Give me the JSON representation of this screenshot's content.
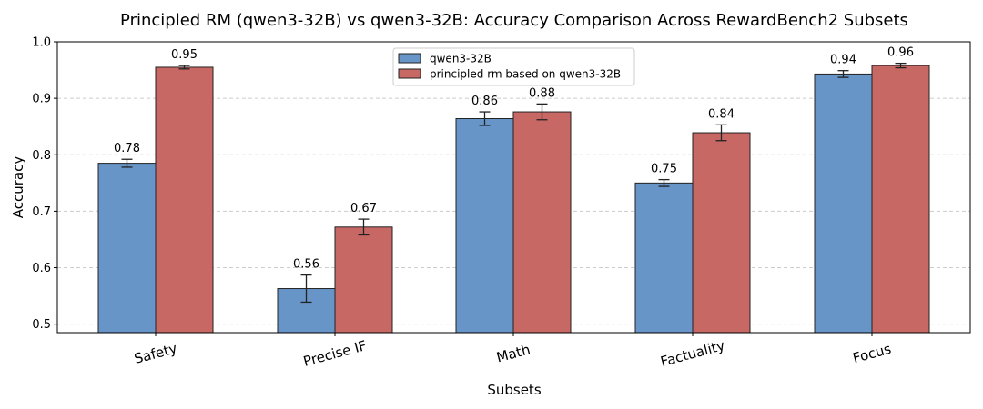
{
  "chart_data": {
    "type": "bar",
    "title": "Principled RM (qwen3-32B) vs qwen3-32B: Accuracy Comparison Across RewardBench2 Subsets",
    "xlabel": "Subsets",
    "ylabel": "Accuracy",
    "ylim": [
      0.485,
      1.0
    ],
    "yticks": [
      0.5,
      0.6,
      0.7,
      0.8,
      0.9,
      1.0
    ],
    "ytick_labels": [
      "0.5",
      "0.6",
      "0.7",
      "0.8",
      "0.9",
      "1.0"
    ],
    "grid": true,
    "legend_position": "top-center",
    "categories": [
      "Safety",
      "Precise IF",
      "Math",
      "Factuality",
      "Focus"
    ],
    "series": [
      {
        "name": "qwen3-32B",
        "color": "#6795c8",
        "values": [
          0.785,
          0.563,
          0.864,
          0.75,
          0.943
        ],
        "errors": [
          0.007,
          0.024,
          0.012,
          0.006,
          0.006
        ],
        "labels": [
          "0.78",
          "0.56",
          "0.86",
          "0.75",
          "0.94"
        ]
      },
      {
        "name": "principled rm based on qwen3-32B",
        "color": "#c86865",
        "values": [
          0.955,
          0.672,
          0.876,
          0.839,
          0.958
        ],
        "errors": [
          0.003,
          0.014,
          0.014,
          0.014,
          0.004
        ],
        "labels": [
          "0.95",
          "0.67",
          "0.88",
          "0.84",
          "0.96"
        ]
      }
    ]
  }
}
